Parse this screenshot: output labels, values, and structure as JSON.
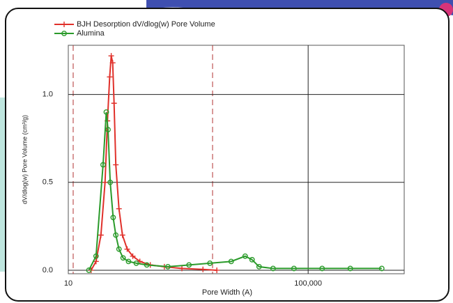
{
  "chart_data": {
    "type": "line",
    "x_label": "Pore Width (A)",
    "y_label": "dV/dlog(w) Pore Volume (cm³/g)",
    "xscale": "log",
    "xlim": [
      10,
      4000000
    ],
    "xticks": [
      10,
      {
        "value": 100000,
        "label": "100,000"
      }
    ],
    "ylim": [
      -0.02,
      1.28
    ],
    "yticks": [
      {
        "value": 0,
        "label": "0.0"
      },
      {
        "value": 0.5,
        "label": "0.5"
      },
      {
        "value": 1.0,
        "label": "1.0"
      }
    ],
    "grid": true,
    "legend": "top-left",
    "series": [
      {
        "name": "BJH Desorption dV/dlog(w) Pore Volume",
        "color": "#e0302a",
        "marker": "plus",
        "x": [
          24,
          29,
          35,
          41,
          45,
          49,
          52,
          55,
          58,
          62,
          70,
          80,
          96,
          119,
          156,
          233,
          400,
          785,
          1760,
          3000
        ],
        "values": [
          0,
          0.05,
          0.2,
          0.5,
          0.85,
          1.1,
          1.22,
          1.18,
          0.95,
          0.6,
          0.35,
          0.2,
          0.12,
          0.08,
          0.05,
          0.03,
          0.02,
          0.01,
          0.005,
          0
        ]
      },
      {
        "name": "Alumina",
        "color": "#2a9a2a",
        "marker": "circle",
        "x": [
          22,
          29,
          38,
          43,
          46,
          50,
          56,
          62,
          70,
          82,
          101,
          136,
          204,
          458,
          1030,
          2300,
          5200,
          8900,
          11600,
          15200,
          26000,
          58000,
          171000,
          504000,
          1690000
        ],
        "values": [
          0,
          0.08,
          0.6,
          0.9,
          0.8,
          0.5,
          0.3,
          0.2,
          0.12,
          0.07,
          0.05,
          0.04,
          0.03,
          0.02,
          0.03,
          0.04,
          0.05,
          0.08,
          0.06,
          0.02,
          0.01,
          0.01,
          0.01,
          0.01,
          0.01
        ]
      }
    ]
  }
}
